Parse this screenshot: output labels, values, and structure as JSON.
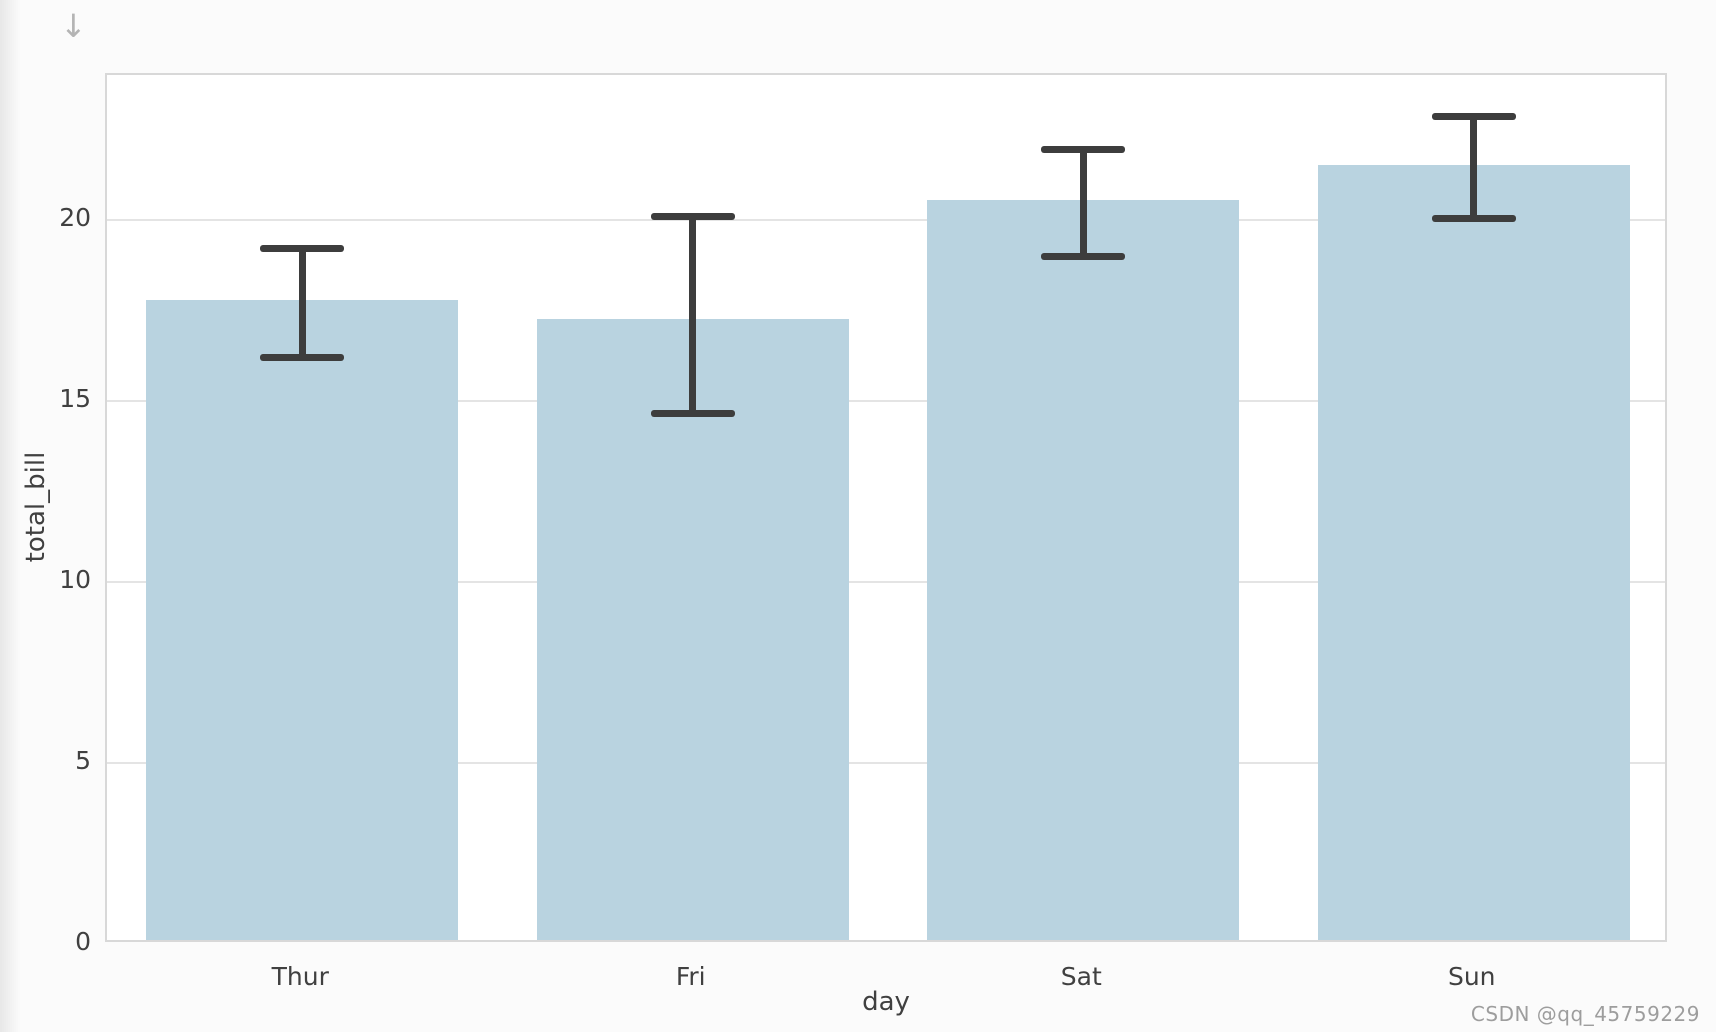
{
  "page": {
    "scroll_arrow_icon": "↓",
    "watermark": "CSDN @qq_45759229",
    "background_color": "#fbfbfb"
  },
  "chart_data": {
    "type": "bar",
    "title": "",
    "xlabel": "day",
    "ylabel": "total_bill",
    "categories": [
      "Thur",
      "Fri",
      "Sat",
      "Sun"
    ],
    "values": [
      17.68,
      17.15,
      20.44,
      21.41
    ],
    "error_low": [
      16.2,
      14.65,
      19.0,
      20.05
    ],
    "error_high": [
      19.2,
      20.1,
      21.95,
      22.85
    ],
    "yticks": [
      0,
      5,
      10,
      15,
      20
    ],
    "ylim": [
      0,
      24
    ],
    "grid": "horizontal",
    "legend_position": "none",
    "bar_color": "#b9d3e0",
    "error_color": "#3d3d3d"
  }
}
